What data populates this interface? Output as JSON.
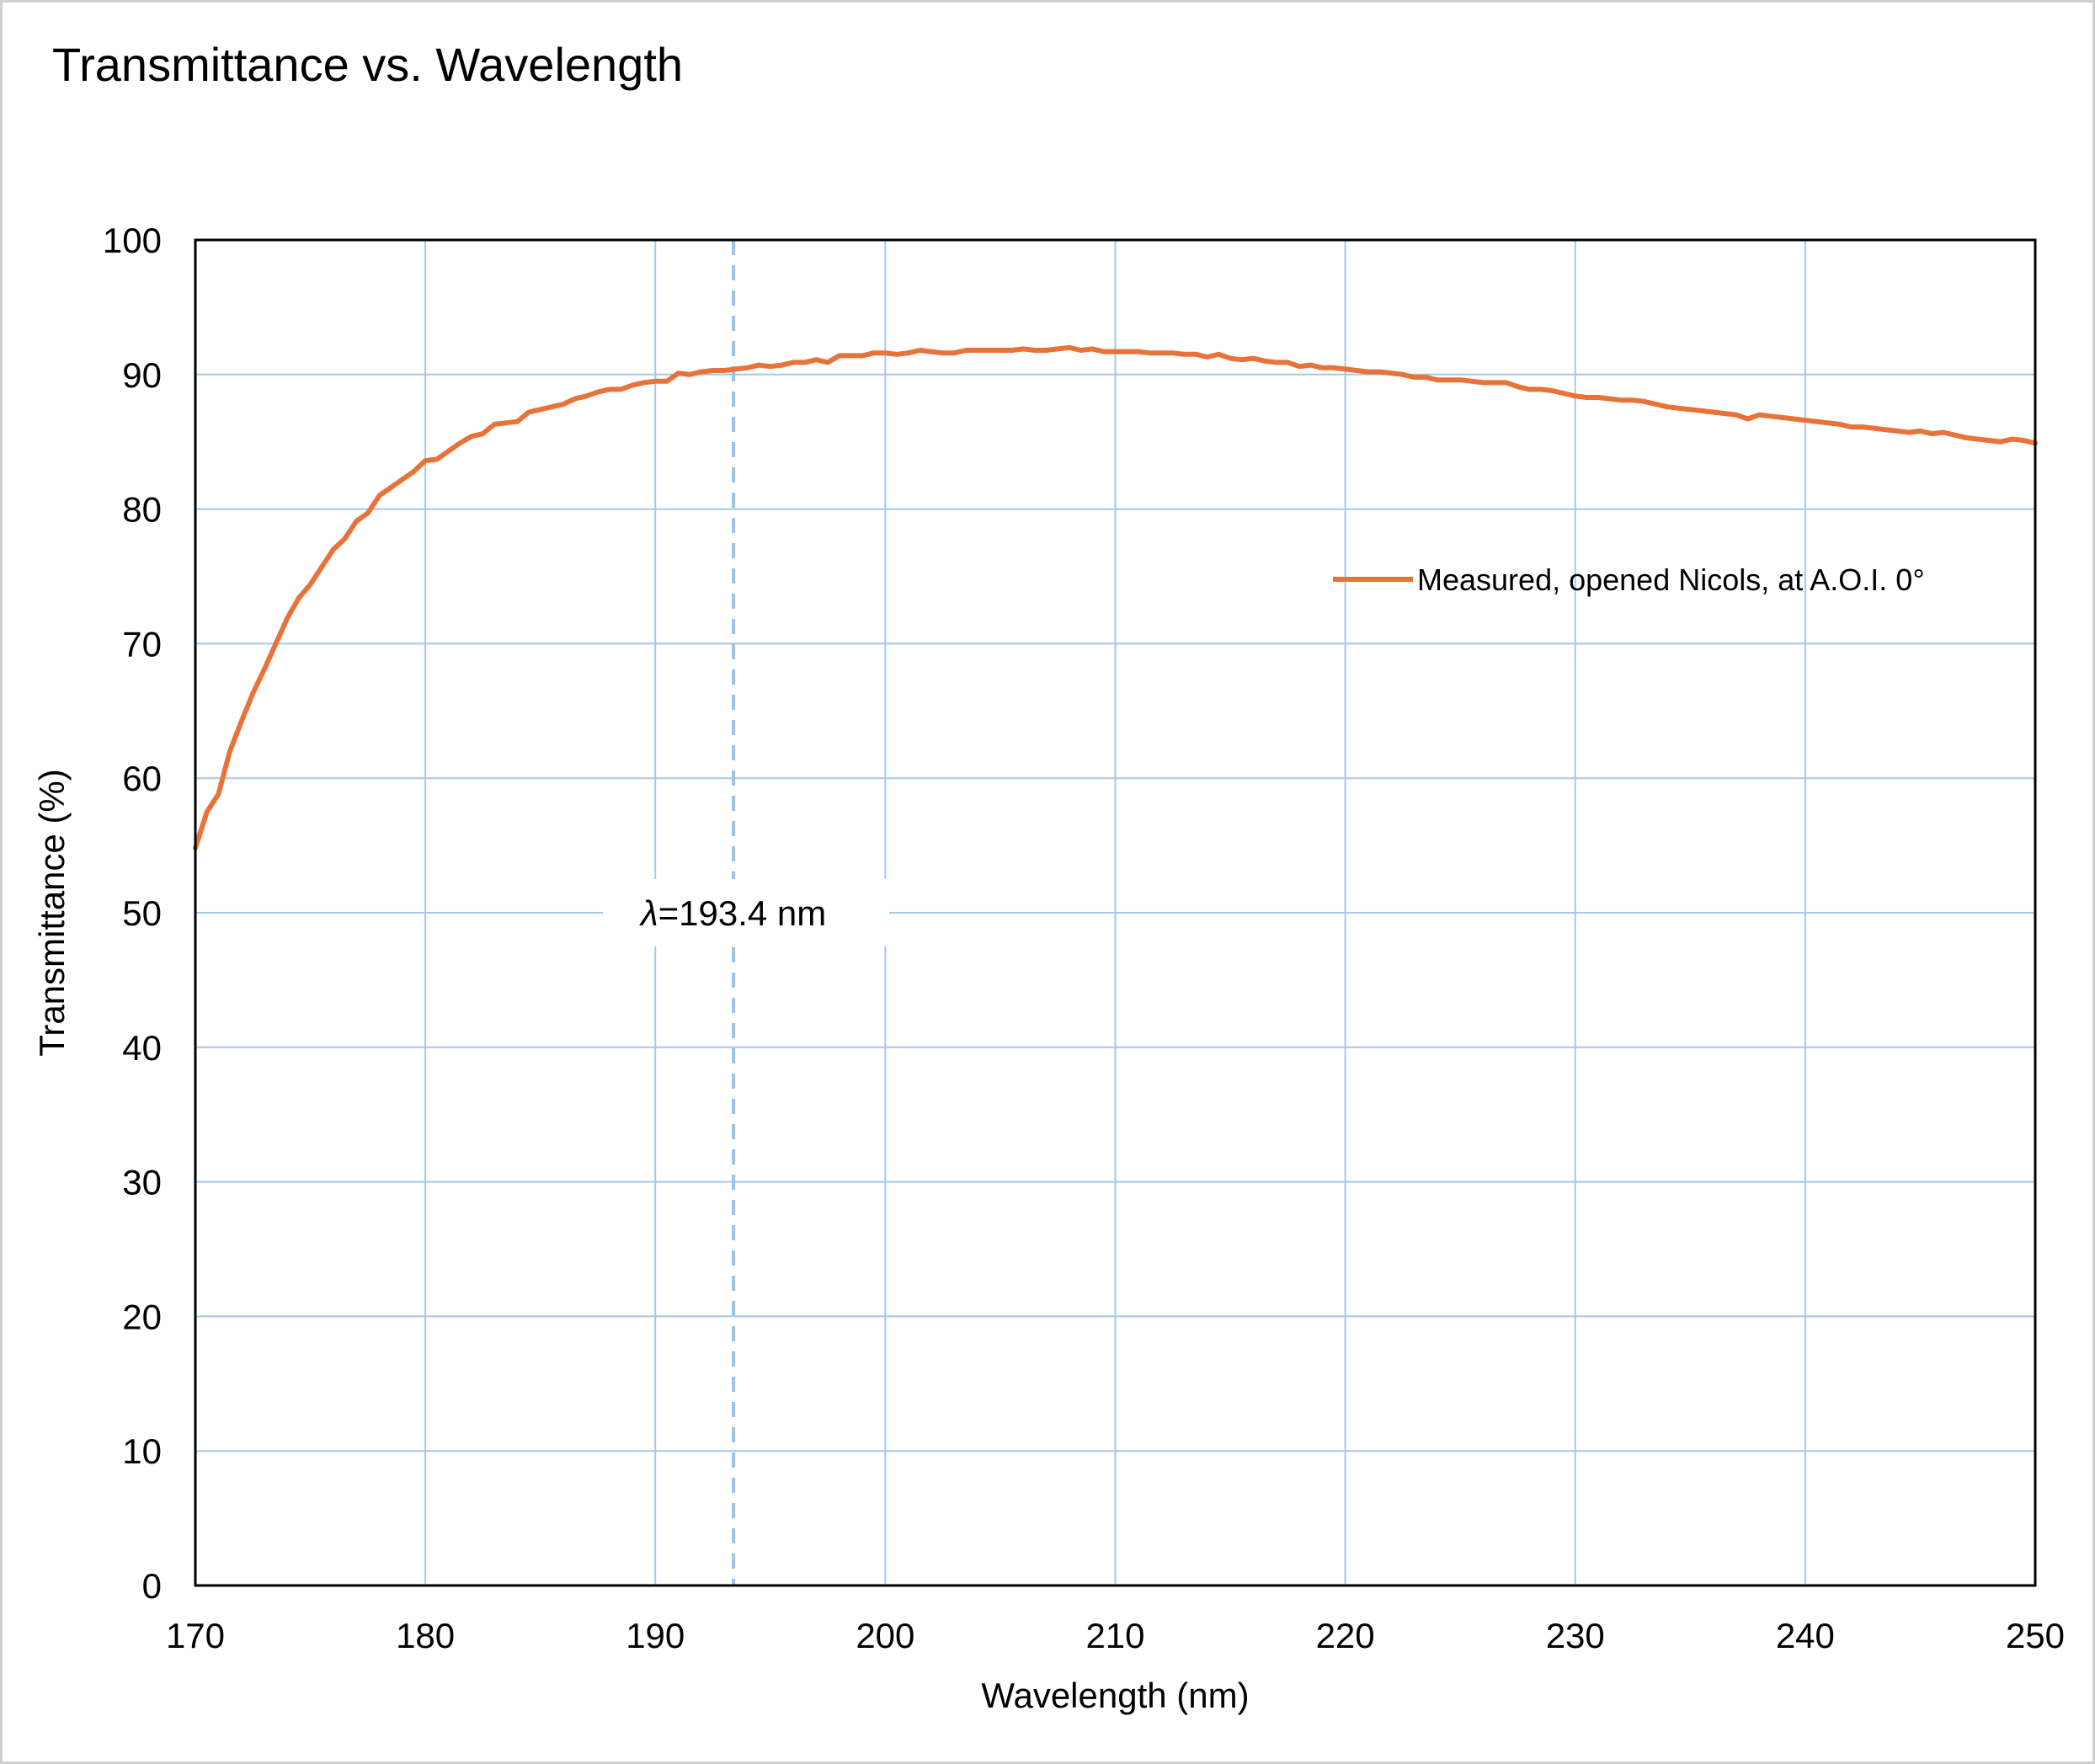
{
  "chart_data": {
    "type": "line",
    "title": "Transmittance vs. Wavelength",
    "xlabel": "Wavelength (nm)",
    "ylabel": "Transmittance (%)",
    "xlim": [
      170,
      250
    ],
    "ylim": [
      0,
      100
    ],
    "xticks": [
      "170",
      "180",
      "190",
      "200",
      "210",
      "220",
      "230",
      "240",
      "250"
    ],
    "yticks": [
      "0",
      "10",
      "20",
      "30",
      "40",
      "50",
      "60",
      "70",
      "80",
      "90",
      "100"
    ],
    "grid": true,
    "legend_position": "right",
    "annotation": {
      "x": 193.4,
      "symbol": "λ",
      "text": "=193.4 nm"
    },
    "colors": {
      "series": "#E8733A",
      "grid": "#A7C7E7",
      "annotation_line": "#9DC3E6"
    },
    "series": [
      {
        "name": "Measured, opened Nicols, at A.O.I. 0°",
        "x": [
          170,
          170.5,
          171,
          171.5,
          172,
          172.5,
          173,
          173.5,
          174,
          174.5,
          175,
          175.5,
          176,
          176.5,
          177,
          177.5,
          178,
          178.5,
          179,
          179.5,
          180,
          180.5,
          181,
          181.5,
          182,
          182.5,
          183,
          183.5,
          184,
          184.5,
          185,
          185.5,
          186,
          186.5,
          187,
          187.5,
          188,
          188.5,
          189,
          189.5,
          190,
          190.5,
          191,
          191.5,
          192,
          192.5,
          193,
          193.5,
          194,
          194.5,
          195,
          195.5,
          196,
          196.5,
          197,
          197.5,
          198,
          198.5,
          199,
          199.5,
          200,
          200.5,
          201,
          201.5,
          202,
          202.5,
          203,
          203.5,
          204,
          204.5,
          205,
          205.5,
          206,
          206.5,
          207,
          207.5,
          208,
          208.5,
          209,
          209.5,
          210,
          210.5,
          211,
          211.5,
          212,
          212.5,
          213,
          213.5,
          214,
          214.5,
          215,
          215.5,
          216,
          216.5,
          217,
          217.5,
          218,
          218.5,
          219,
          219.5,
          220,
          220.5,
          221,
          221.5,
          222,
          222.5,
          223,
          223.5,
          224,
          224.5,
          225,
          225.5,
          226,
          226.5,
          227,
          227.5,
          228,
          228.5,
          229,
          229.5,
          230,
          230.5,
          231,
          231.5,
          232,
          232.5,
          233,
          233.5,
          234,
          234.5,
          235,
          235.5,
          236,
          236.5,
          237,
          237.5,
          238,
          238.5,
          239,
          239.5,
          240,
          240.5,
          241,
          241.5,
          242,
          242.5,
          243,
          243.5,
          244,
          244.5,
          245,
          245.5,
          246,
          246.5,
          247,
          247.5,
          248,
          248.5,
          249,
          249.5,
          250
        ],
        "values": [
          54.8,
          57.5,
          58.8,
          62.0,
          64.2,
          66.3,
          68.1,
          70.0,
          71.9,
          73.4,
          74.4,
          75.7,
          77.0,
          77.8,
          79.1,
          79.7,
          81.0,
          81.6,
          82.2,
          82.8,
          83.6,
          83.7,
          84.3,
          84.9,
          85.4,
          85.6,
          86.3,
          86.4,
          86.5,
          87.2,
          87.4,
          87.6,
          87.8,
          88.2,
          88.4,
          88.7,
          88.9,
          88.9,
          89.2,
          89.4,
          89.5,
          89.5,
          90.1,
          90.0,
          90.2,
          90.3,
          90.3,
          90.4,
          90.5,
          90.7,
          90.6,
          90.7,
          90.9,
          90.9,
          91.1,
          90.9,
          91.4,
          91.4,
          91.4,
          91.6,
          91.6,
          91.5,
          91.6,
          91.8,
          91.7,
          91.6,
          91.6,
          91.8,
          91.8,
          91.8,
          91.8,
          91.8,
          91.9,
          91.8,
          91.8,
          91.9,
          92.0,
          91.8,
          91.9,
          91.7,
          91.7,
          91.7,
          91.7,
          91.6,
          91.6,
          91.6,
          91.5,
          91.5,
          91.3,
          91.5,
          91.2,
          91.1,
          91.2,
          91.0,
          90.9,
          90.9,
          90.6,
          90.7,
          90.5,
          90.5,
          90.4,
          90.3,
          90.2,
          90.2,
          90.1,
          90.0,
          89.8,
          89.8,
          89.6,
          89.6,
          89.6,
          89.5,
          89.4,
          89.4,
          89.4,
          89.1,
          88.9,
          88.9,
          88.8,
          88.6,
          88.4,
          88.3,
          88.3,
          88.2,
          88.1,
          88.1,
          88.0,
          87.8,
          87.6,
          87.5,
          87.4,
          87.3,
          87.2,
          87.1,
          87.0,
          86.7,
          87.0,
          86.9,
          86.8,
          86.7,
          86.6,
          86.5,
          86.4,
          86.3,
          86.1,
          86.1,
          86.0,
          85.9,
          85.8,
          85.7,
          85.8,
          85.6,
          85.7,
          85.5,
          85.3,
          85.2,
          85.1,
          85.0,
          85.2,
          85.1,
          84.9
        ]
      }
    ]
  }
}
